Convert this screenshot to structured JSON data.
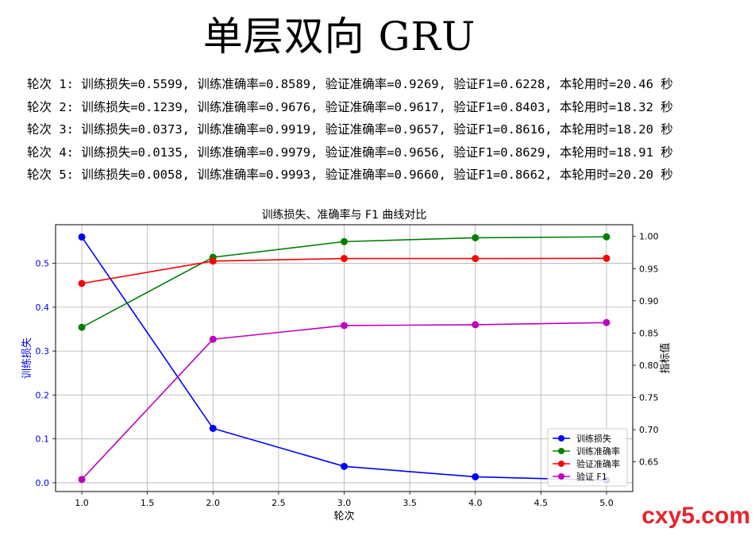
{
  "page_title": "单层双向 GRU",
  "log_lines": [
    "轮次 1: 训练损失=0.5599, 训练准确率=0.8589, 验证准确率=0.9269, 验证F1=0.6228, 本轮用时=20.46 秒",
    "轮次 2: 训练损失=0.1239, 训练准确率=0.9676, 验证准确率=0.9617, 验证F1=0.8403, 本轮用时=18.32 秒",
    "轮次 3: 训练损失=0.0373, 训练准确率=0.9919, 验证准确率=0.9657, 验证F1=0.8616, 本轮用时=18.20 秒",
    "轮次 4: 训练损失=0.0135, 训练准确率=0.9979, 验证准确率=0.9656, 验证F1=0.8629, 本轮用时=18.91 秒",
    "轮次 5: 训练损失=0.0058, 训练准确率=0.9993, 验证准确率=0.9660, 验证F1=0.8662, 本轮用时=20.20 秒"
  ],
  "chart_data": {
    "type": "line",
    "title": "训练损失、准确率与 F1 曲线对比",
    "xlabel": "轮次",
    "ylabel_left": "训练损失",
    "ylabel_right": "指标值",
    "x": [
      1,
      2,
      3,
      4,
      5
    ],
    "xlim": [
      0.8,
      5.2
    ],
    "xticks": [
      "1.0",
      "1.5",
      "2.0",
      "2.5",
      "3.0",
      "3.5",
      "4.0",
      "4.5",
      "5.0"
    ],
    "ylim_left": [
      -0.02,
      0.5879
    ],
    "yticks_left": [
      "0.0",
      "0.1",
      "0.2",
      "0.3",
      "0.4",
      "0.5"
    ],
    "ylim_right": [
      0.604,
      1.0181
    ],
    "yticks_right": [
      "0.65",
      "0.70",
      "0.75",
      "0.80",
      "0.85",
      "0.90",
      "0.95",
      "1.00"
    ],
    "grid": true,
    "legend_position": "lower-right",
    "left_axis_color": "#0000ff",
    "series": [
      {
        "name": "训练损失",
        "axis": "left",
        "color": "#0000ff",
        "values": [
          0.5599,
          0.1239,
          0.0373,
          0.0135,
          0.0058
        ]
      },
      {
        "name": "训练准确率",
        "axis": "right",
        "color": "#008000",
        "values": [
          0.8589,
          0.9676,
          0.9919,
          0.9979,
          0.9993
        ]
      },
      {
        "name": "验证准确率",
        "axis": "right",
        "color": "#ff0000",
        "values": [
          0.9269,
          0.9617,
          0.9657,
          0.9656,
          0.966
        ]
      },
      {
        "name": "验证 F1",
        "axis": "right",
        "color": "#bf00bf",
        "values": [
          0.6228,
          0.8403,
          0.8616,
          0.8629,
          0.8662
        ]
      }
    ]
  },
  "watermark": "cxy5.com"
}
